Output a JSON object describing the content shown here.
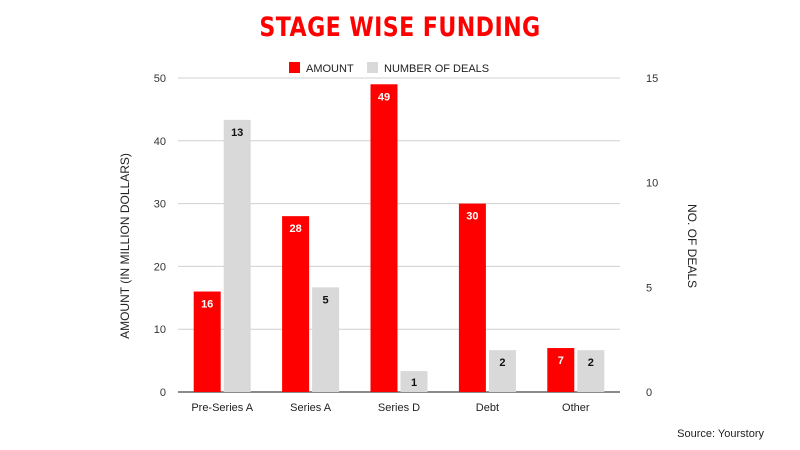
{
  "colors": {
    "amount": "#ff0000",
    "deals": "#d9d9d9",
    "title": "#ff0000",
    "grid": "#d0d0d0"
  },
  "source": "Source: Yourstory",
  "chart_data": {
    "type": "bar",
    "title": "STAGE WISE FUNDING",
    "categories": [
      "Pre-Series A",
      "Series A",
      "Series D",
      "Debt",
      "Other"
    ],
    "series": [
      {
        "name": "AMOUNT",
        "axis": "left",
        "values": [
          16,
          28,
          49,
          30,
          7
        ]
      },
      {
        "name": "NUMBER OF DEALS",
        "axis": "right",
        "values": [
          13,
          5,
          1,
          2,
          2
        ]
      }
    ],
    "ylabel": "AMOUNT (IN MILLION DOLLARS)",
    "ylim": [
      0,
      50
    ],
    "yticks": [
      "0",
      "10",
      "20",
      "30",
      "40",
      "50"
    ],
    "y2label": "NO. OF DEALS",
    "y2lim": [
      0,
      15
    ],
    "y2ticks": [
      "0",
      "5",
      "10",
      "15"
    ],
    "grid": true,
    "legend": "top-center"
  }
}
